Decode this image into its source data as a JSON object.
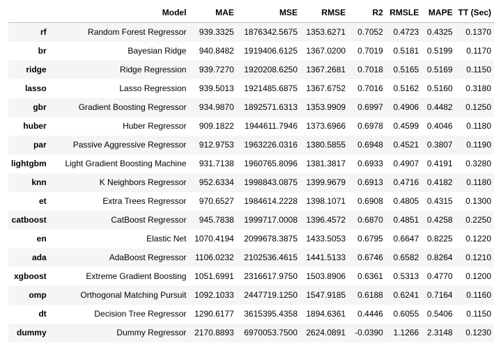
{
  "table": {
    "columns": [
      "",
      "Model",
      "MAE",
      "MSE",
      "RMSE",
      "R2",
      "RMSLE",
      "MAPE",
      "TT (Sec)"
    ],
    "rows": [
      [
        "rf",
        "Random Forest Regressor",
        "939.3325",
        "1876342.5675",
        "1353.6271",
        "0.7052",
        "0.4723",
        "0.4325",
        "0.1370"
      ],
      [
        "br",
        "Bayesian Ridge",
        "940.8482",
        "1919406.6125",
        "1367.0200",
        "0.7019",
        "0.5181",
        "0.5199",
        "0.1170"
      ],
      [
        "ridge",
        "Ridge Regression",
        "939.7270",
        "1920208.6250",
        "1367.2681",
        "0.7018",
        "0.5165",
        "0.5169",
        "0.1150"
      ],
      [
        "lasso",
        "Lasso Regression",
        "939.5013",
        "1921485.6875",
        "1367.6752",
        "0.7016",
        "0.5162",
        "0.5160",
        "0.3180"
      ],
      [
        "gbr",
        "Gradient Boosting Regressor",
        "934.9870",
        "1892571.6313",
        "1353.9909",
        "0.6997",
        "0.4906",
        "0.4482",
        "0.1250"
      ],
      [
        "huber",
        "Huber Regressor",
        "909.1822",
        "1944611.7946",
        "1373.6966",
        "0.6978",
        "0.4599",
        "0.4046",
        "0.1180"
      ],
      [
        "par",
        "Passive Aggressive Regressor",
        "912.9753",
        "1963226.0316",
        "1380.5855",
        "0.6948",
        "0.4521",
        "0.3807",
        "0.1190"
      ],
      [
        "lightgbm",
        "Light Gradient Boosting Machine",
        "931.7138",
        "1960765.8096",
        "1381.3817",
        "0.6933",
        "0.4907",
        "0.4191",
        "0.3280"
      ],
      [
        "knn",
        "K Neighbors Regressor",
        "952.6334",
        "1998843.0875",
        "1399.9679",
        "0.6913",
        "0.4716",
        "0.4182",
        "0.1180"
      ],
      [
        "et",
        "Extra Trees Regressor",
        "970.6527",
        "1984614.2228",
        "1398.1071",
        "0.6908",
        "0.4805",
        "0.4315",
        "0.1300"
      ],
      [
        "catboost",
        "CatBoost Regressor",
        "945.7838",
        "1999717.0008",
        "1396.4572",
        "0.6870",
        "0.4851",
        "0.4258",
        "0.2250"
      ],
      [
        "en",
        "Elastic Net",
        "1070.4194",
        "2099678.3875",
        "1433.5053",
        "0.6795",
        "0.6647",
        "0.8225",
        "0.1220"
      ],
      [
        "ada",
        "AdaBoost Regressor",
        "1106.0232",
        "2102536.4615",
        "1441.5133",
        "0.6746",
        "0.6582",
        "0.8264",
        "0.1210"
      ],
      [
        "xgboost",
        "Extreme Gradient Boosting",
        "1051.6991",
        "2316617.9750",
        "1503.8906",
        "0.6361",
        "0.5313",
        "0.4770",
        "0.1200"
      ],
      [
        "omp",
        "Orthogonal Matching Pursuit",
        "1092.1033",
        "2447719.1250",
        "1547.9185",
        "0.6188",
        "0.6241",
        "0.7164",
        "0.1160"
      ],
      [
        "dt",
        "Decision Tree Regressor",
        "1290.6177",
        "3615395.4358",
        "1894.6361",
        "0.4446",
        "0.6055",
        "0.5406",
        "0.1150"
      ],
      [
        "dummy",
        "Dummy Regressor",
        "2170.8893",
        "6970053.7500",
        "2624.0891",
        "-0.0390",
        "1.1266",
        "2.3148",
        "0.1230"
      ]
    ]
  }
}
